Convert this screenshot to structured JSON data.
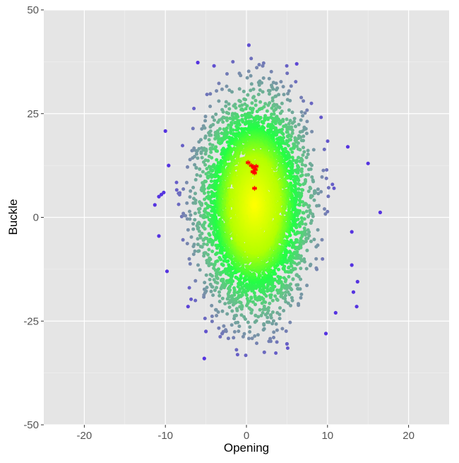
{
  "chart_data": {
    "type": "scatter",
    "title": "",
    "xlabel": "Opening",
    "ylabel": "Buckle",
    "xlim": [
      -25,
      25
    ],
    "ylim": [
      -50,
      50
    ],
    "x_ticks": [
      -20,
      -10,
      0,
      10,
      20
    ],
    "x_tick_labels": [
      "-20",
      "-10",
      "0",
      "10",
      "20"
    ],
    "y_ticks": [
      -50,
      -25,
      0,
      25,
      50
    ],
    "y_tick_labels": [
      "-50",
      "-25",
      "0",
      "25",
      "50"
    ],
    "grid": true,
    "panel_background": "#e5e5e5",
    "color_scale": "density: yellow (center) → green → slate blue → violet (outliers)",
    "colors": {
      "core": "#ffff00",
      "inner": "#b4ff00",
      "mid": "#22ff44",
      "outer": "#66c08a",
      "far": "#7a8eaa",
      "extreme": "#5533e0",
      "highlight": "#ff0000"
    },
    "bulk_distribution": {
      "description": "dense cloud of ~6000 points",
      "x_mean": 1.0,
      "x_sd": 3.0,
      "y_mean": 3.0,
      "y_sd": 11.5,
      "count": 6000
    },
    "outliers": [
      {
        "x": 0.3,
        "y": 41.5
      },
      {
        "x": -6.0,
        "y": 37.3
      },
      {
        "x": -4.0,
        "y": 36.5
      },
      {
        "x": 2.0,
        "y": 36.5
      },
      {
        "x": 6.2,
        "y": 37.0
      },
      {
        "x": -10.0,
        "y": 20.8
      },
      {
        "x": 12.5,
        "y": 17.0
      },
      {
        "x": 15.0,
        "y": 13.0
      },
      {
        "x": 16.5,
        "y": 1.2
      },
      {
        "x": -11.3,
        "y": 3.0
      },
      {
        "x": -10.5,
        "y": 5.5
      },
      {
        "x": -10.2,
        "y": 6.0
      },
      {
        "x": -10.8,
        "y": 5.0
      },
      {
        "x": -10.8,
        "y": -4.5
      },
      {
        "x": -9.6,
        "y": 12.5
      },
      {
        "x": 13.0,
        "y": -3.5
      },
      {
        "x": 13.0,
        "y": -11.5
      },
      {
        "x": 13.7,
        "y": -15.5
      },
      {
        "x": 13.2,
        "y": -18.0
      },
      {
        "x": 13.6,
        "y": -21.5
      },
      {
        "x": 11.0,
        "y": -23.0
      },
      {
        "x": -9.8,
        "y": -13.0
      },
      {
        "x": -7.2,
        "y": -21.5
      },
      {
        "x": 9.8,
        "y": -28.0
      },
      {
        "x": -5.0,
        "y": -27.5
      },
      {
        "x": -5.2,
        "y": -34.0
      },
      {
        "x": 2.2,
        "y": -32.5
      },
      {
        "x": 5.0,
        "y": -30.5
      },
      {
        "x": -3.0,
        "y": -28.0
      }
    ],
    "highlighted_points": {
      "marker": "asterisk",
      "color": "#ff0000",
      "points": [
        {
          "x": 0.2,
          "y": 13.2
        },
        {
          "x": 0.6,
          "y": 12.5
        },
        {
          "x": 0.9,
          "y": 12.0
        },
        {
          "x": 1.1,
          "y": 11.5
        },
        {
          "x": 1.2,
          "y": 12.3
        },
        {
          "x": 0.8,
          "y": 11.0
        },
        {
          "x": 1.0,
          "y": 10.7
        },
        {
          "x": 1.0,
          "y": 7.0
        }
      ]
    }
  }
}
